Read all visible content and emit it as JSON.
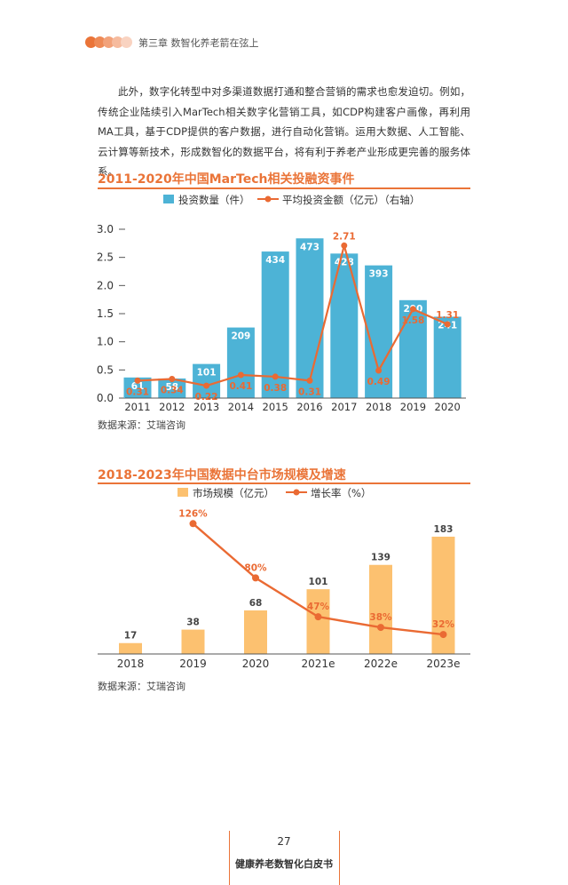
{
  "header": {
    "chapter": "第三章  数智化养老箭在弦上",
    "dot_colors": [
      "#ea7438",
      "#ee8a56",
      "#f2a27a",
      "#f6bb9e",
      "#f9d3c1"
    ]
  },
  "paragraph": "此外，数字化转型中对多渠道数据打通和整合营销的需求也愈发迫切。例如，传统企业陆续引入MarTech相关数字化营销工具，如CDP构建客户画像，再利用MA工具，基于CDP提供的客户数据，进行自动化营销。运用大数据、人工智能、云计算等新技术，形成数智化的数据平台，将有利于养老产业形成更完善的服务体系。",
  "colors": {
    "accent": "#ea7438",
    "bar_blue": "#4db3d6",
    "bar_orange": "#fcc170",
    "line_orange": "#ea6a33"
  },
  "chart1": {
    "title": "2011-2020年中国MarTech相关投融资事件",
    "source": "数据来源：艾瑞咨询"
  },
  "chart2": {
    "title": "2018-2023年中国数据中台市场规模及增速",
    "source": "数据来源：艾瑞咨询"
  },
  "chart_data": [
    {
      "type": "bar",
      "title": "2011-2020年中国MarTech相关投融资事件",
      "categories": [
        "2011",
        "2012",
        "2013",
        "2014",
        "2015",
        "2016",
        "2017",
        "2018",
        "2019",
        "2020"
      ],
      "series": [
        {
          "name": "投资数量（件）",
          "kind": "bar",
          "axis": "left",
          "values": [
            61,
            58,
            101,
            209,
            434,
            473,
            428,
            393,
            290,
            241
          ],
          "labels": [
            "61",
            "58",
            "101",
            "209",
            "434",
            "473",
            "428",
            "393",
            "290",
            "241"
          ]
        },
        {
          "name": "平均投资金额（亿元）（右轴）",
          "kind": "line",
          "axis": "right",
          "values": [
            0.31,
            0.34,
            0.22,
            0.41,
            0.38,
            0.31,
            2.71,
            0.49,
            1.58,
            1.31
          ],
          "labels": [
            "0.31",
            "0.34",
            "0.22",
            "0.41",
            "0.38",
            "0.31",
            "2.71",
            "0.49",
            "1.58",
            "1.31"
          ]
        }
      ],
      "y_ticks": [
        "0.0",
        "0.5",
        "1.0",
        "1.5",
        "2.0",
        "2.5",
        "3.0"
      ],
      "ylim": [
        0,
        3.0
      ],
      "legend": "top",
      "source": "数据来源：艾瑞咨询"
    },
    {
      "type": "bar",
      "title": "2018-2023年中国数据中台市场规模及增速",
      "categories": [
        "2018",
        "2019",
        "2020",
        "2021e",
        "2022e",
        "2023e"
      ],
      "series": [
        {
          "name": "市场规模（亿元）",
          "kind": "bar",
          "values": [
            17,
            38,
            68,
            101,
            139,
            183
          ],
          "labels": [
            "17",
            "38",
            "68",
            "101",
            "139",
            "183"
          ]
        },
        {
          "name": "增长率（%）",
          "kind": "line",
          "values": [
            null,
            126,
            80,
            47,
            38,
            32
          ],
          "labels": [
            "",
            "126%",
            "80%",
            "47%",
            "38%",
            "32%"
          ]
        }
      ],
      "legend": "top",
      "source": "数据来源：艾瑞咨询"
    }
  ],
  "footer": {
    "page_number": "27",
    "book_title": "健康养老数智化白皮书"
  }
}
